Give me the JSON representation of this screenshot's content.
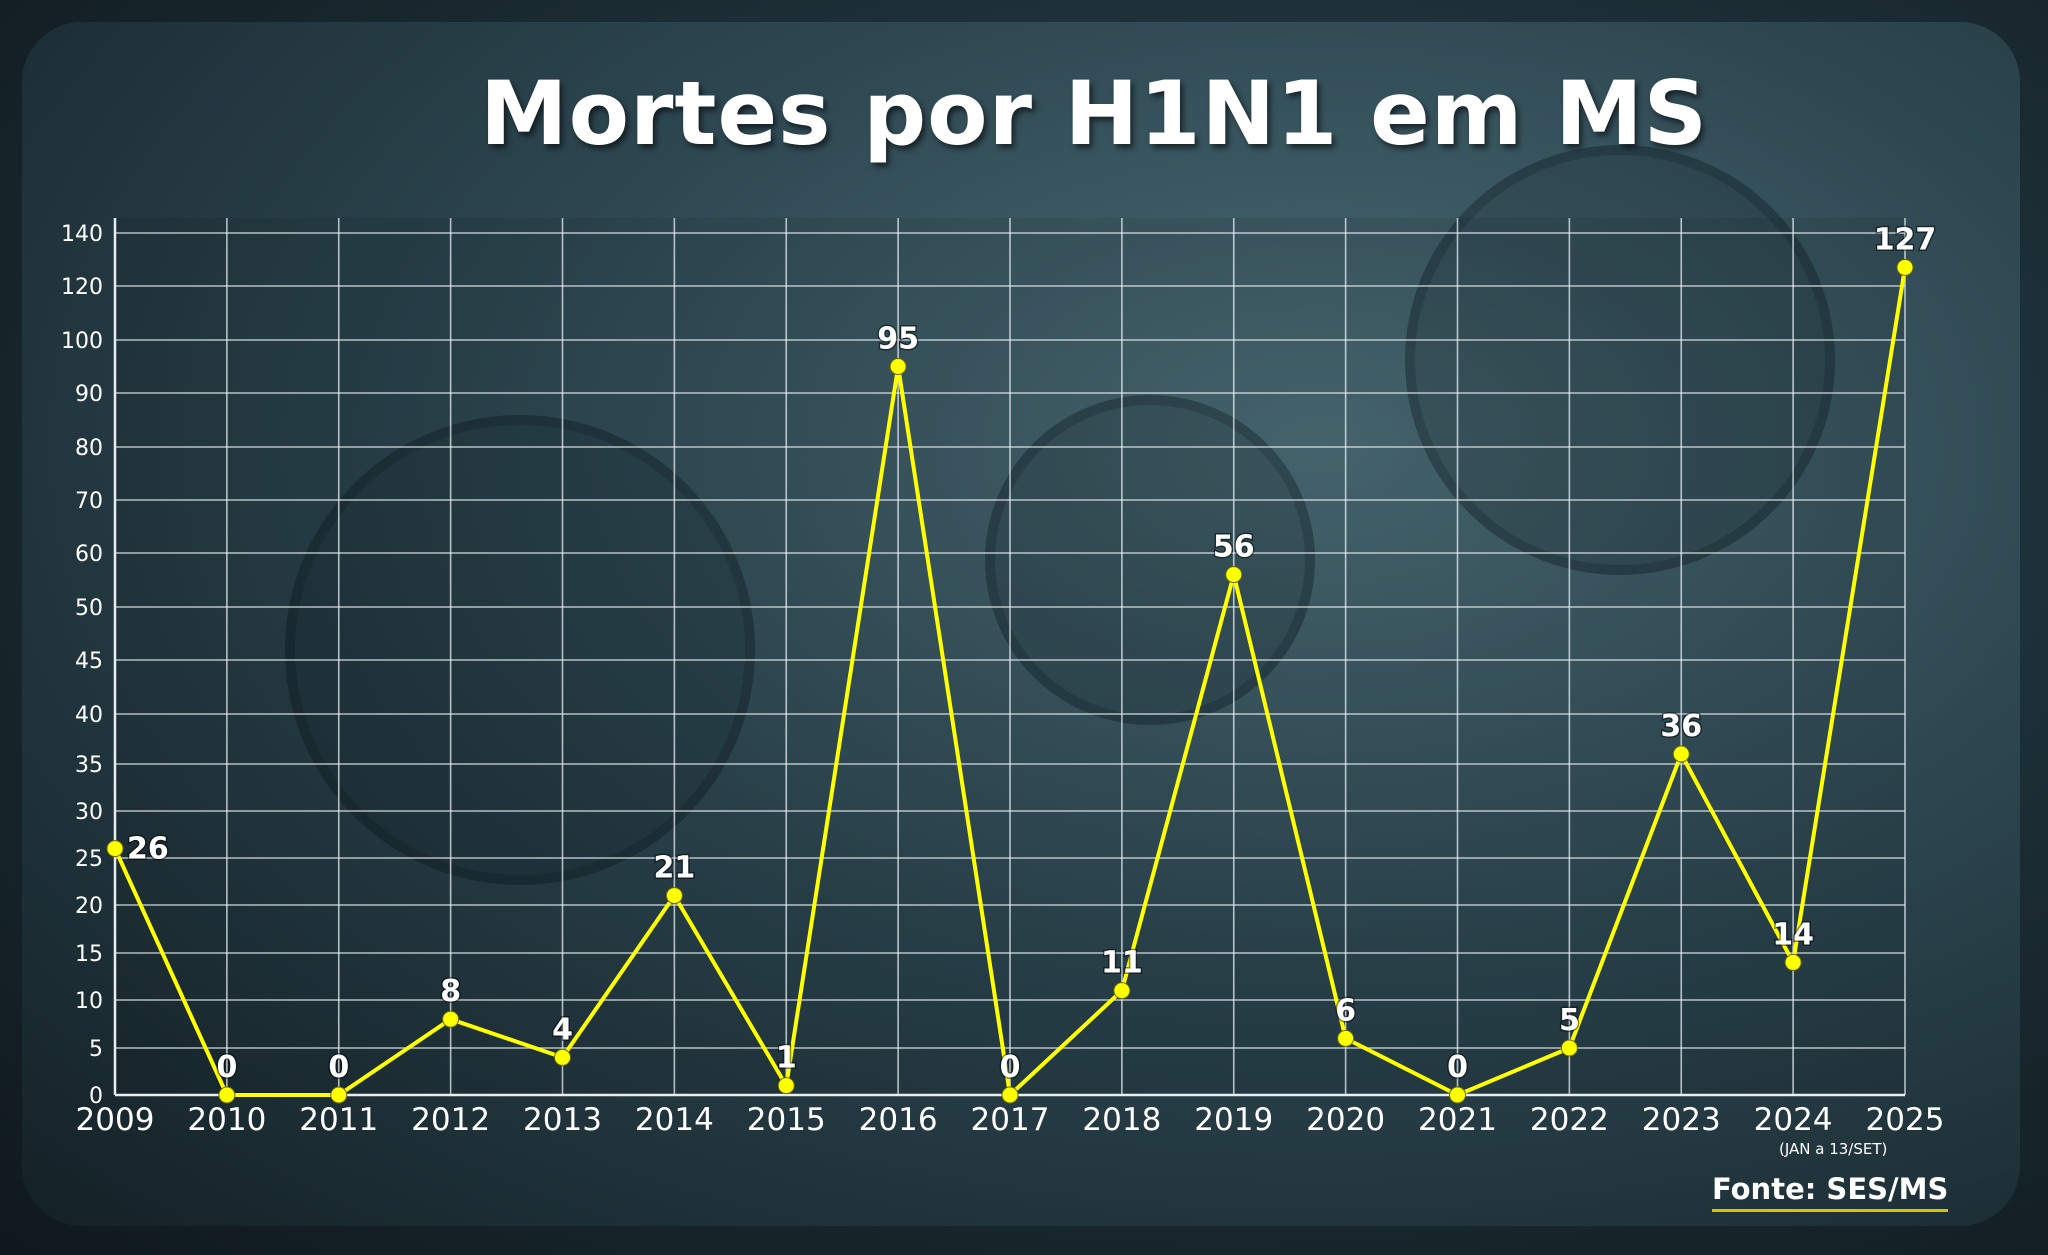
{
  "title": "Mortes por H1N1 em MS",
  "source": "Fonte: SES/MS",
  "note_2025": "(JAN a 13/SET)",
  "colors": {
    "line": "#ffff00",
    "grid": "#e8eef0",
    "text": "#ffffff"
  },
  "chart_data": {
    "type": "line",
    "title": "Mortes por H1N1 em MS",
    "xlabel": "",
    "ylabel": "",
    "categories": [
      "2009",
      "2010",
      "2011",
      "2012",
      "2013",
      "2014",
      "2015",
      "2016",
      "2017",
      "2018",
      "2019",
      "2020",
      "2021",
      "2022",
      "2023",
      "2024",
      "2025"
    ],
    "values": [
      26,
      0,
      0,
      8,
      4,
      21,
      1,
      95,
      0,
      11,
      56,
      6,
      0,
      5,
      36,
      14,
      127
    ],
    "yticks": [
      0,
      5,
      10,
      15,
      20,
      25,
      30,
      35,
      40,
      45,
      50,
      60,
      70,
      80,
      90,
      100,
      120,
      140
    ],
    "grid": true,
    "legend": "none"
  }
}
